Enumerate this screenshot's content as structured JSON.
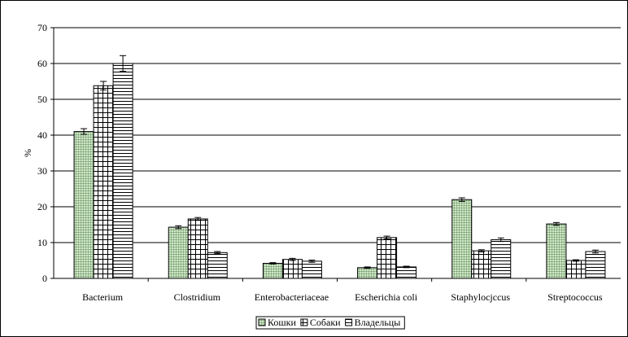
{
  "chart_data": {
    "type": "bar",
    "title": "",
    "xlabel": "",
    "ylabel": "%",
    "ylim": [
      0,
      70
    ],
    "yticks": [
      0,
      10,
      20,
      30,
      40,
      50,
      60,
      70
    ],
    "grid": true,
    "legend_position": "bottom",
    "categories": [
      "Bacterium",
      "Clostridium",
      "Enterobacteriaceae",
      "Escherichia coli",
      "Staphylocjccus",
      "Streptococcus"
    ],
    "series": [
      {
        "name": "Кошки",
        "pattern": "small-grid",
        "color": "#c8e6c0",
        "values": [
          41,
          14.3,
          4.2,
          3,
          22,
          15.2
        ],
        "errors": [
          0.8,
          0.4,
          0.2,
          0.2,
          0.5,
          0.4
        ]
      },
      {
        "name": "Собаки",
        "pattern": "large-grid",
        "color": "#ffffff",
        "values": [
          53.8,
          16.6,
          5.3,
          11.4,
          7.7,
          5
        ],
        "errors": [
          1.2,
          0.4,
          0.3,
          0.4,
          0.3,
          0.2
        ]
      },
      {
        "name": "Владельцы",
        "pattern": "horizontal",
        "color": "#ffffff",
        "values": [
          60,
          7.2,
          4.8,
          3.2,
          10.8,
          7.5
        ],
        "errors": [
          2.2,
          0.3,
          0.3,
          0.2,
          0.5,
          0.4
        ]
      }
    ]
  }
}
